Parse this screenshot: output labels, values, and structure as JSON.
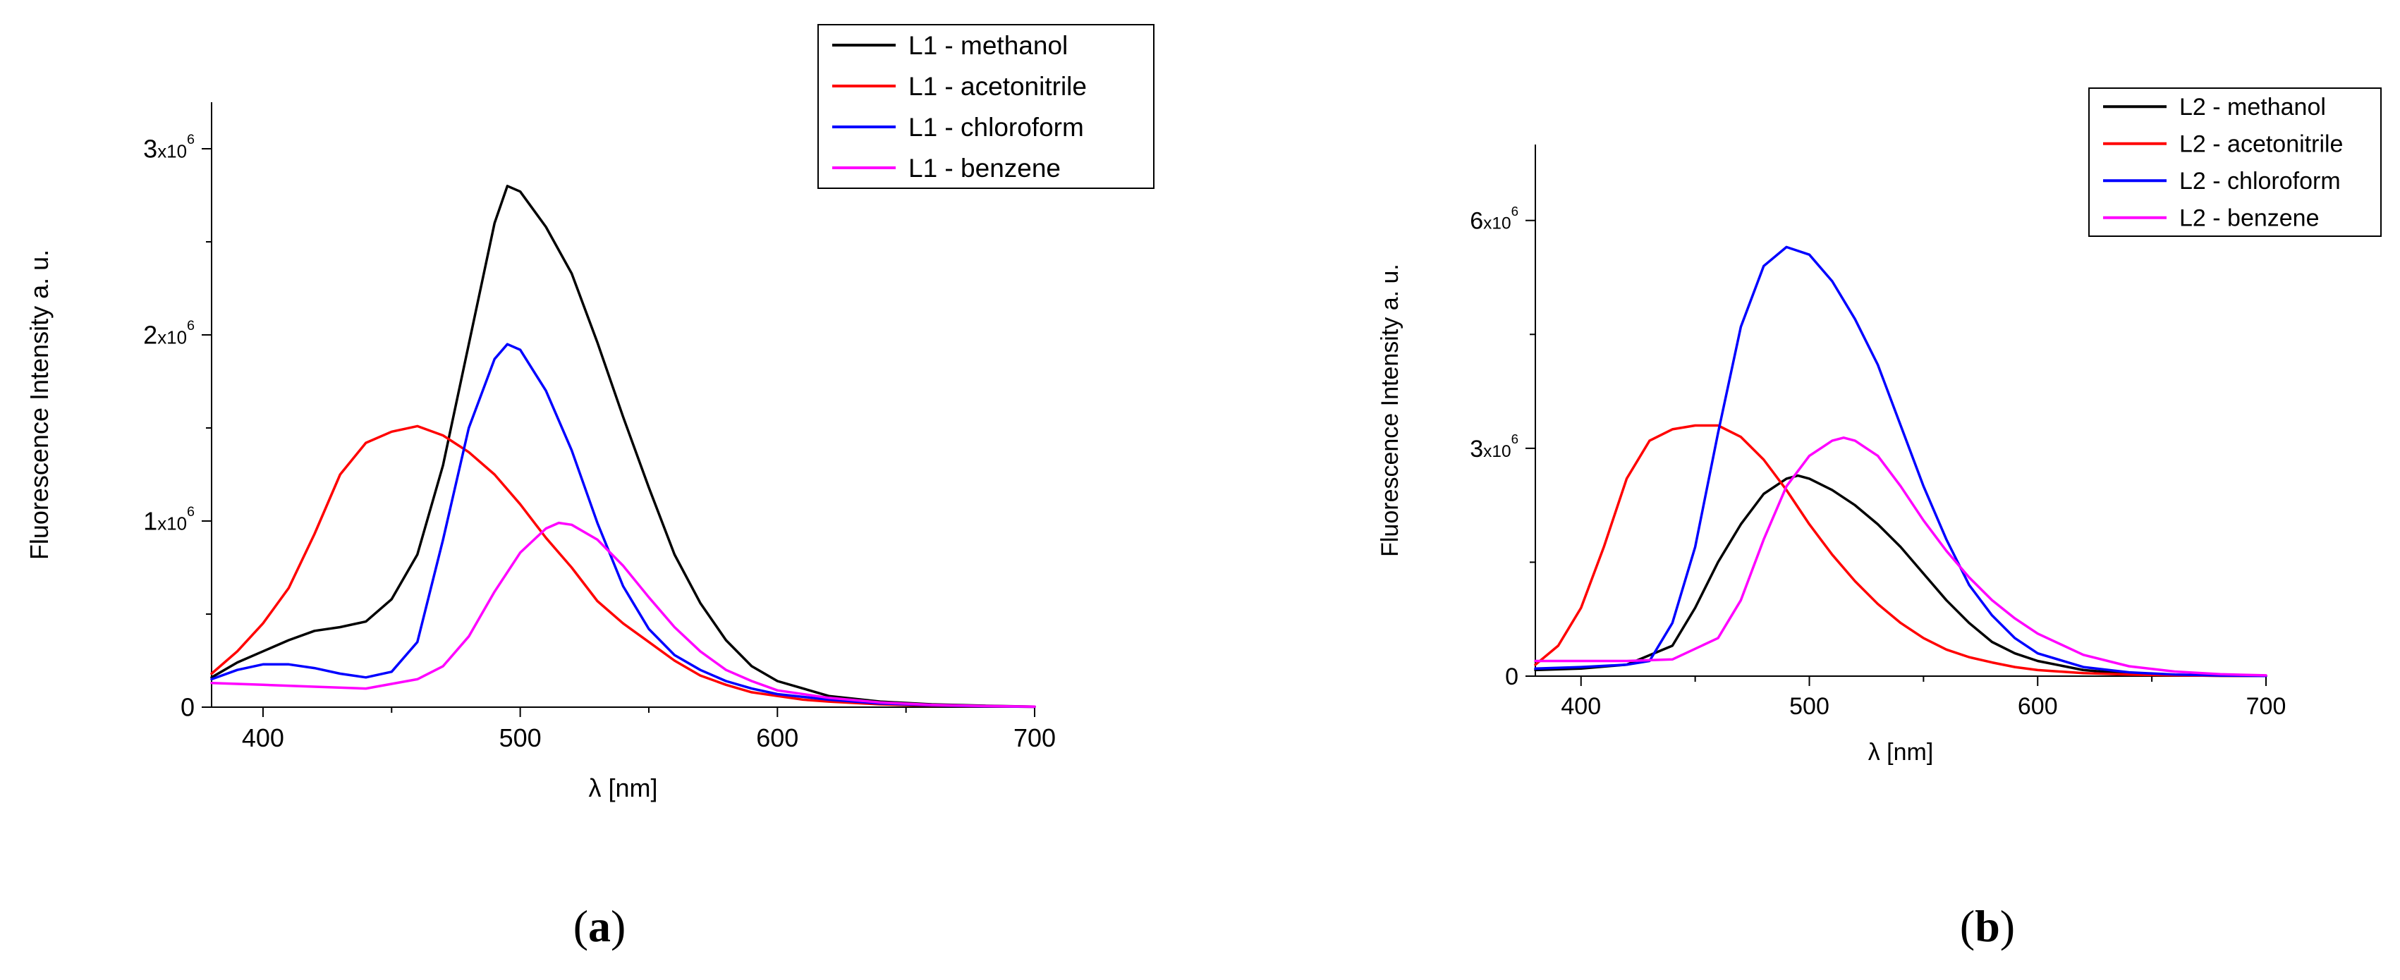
{
  "figure": {
    "panel_labels": [
      {
        "open": "(",
        "letter": "a",
        "close": ")"
      },
      {
        "open": "(",
        "letter": "b",
        "close": ")"
      }
    ]
  },
  "chart_data": [
    {
      "type": "line",
      "panel": "a",
      "xlabel": "λ [nm]",
      "ylabel": "Fluorescence Intensity a. u.",
      "xlim": [
        380,
        700
      ],
      "ylim": [
        0,
        3250000
      ],
      "xticks": [
        400,
        500,
        600,
        700
      ],
      "yticks": [
        {
          "value": 0,
          "mant": "0",
          "exp": ""
        },
        {
          "value": 1000000,
          "mant": "1",
          "exp": "6"
        },
        {
          "value": 2000000,
          "mant": "2",
          "exp": "6"
        },
        {
          "value": 3000000,
          "mant": "3",
          "exp": "6"
        }
      ],
      "legend_position": "top-right",
      "series": [
        {
          "name": "L1 - methanol",
          "color": "#000000",
          "x": [
            380,
            390,
            400,
            410,
            420,
            430,
            440,
            450,
            460,
            470,
            480,
            490,
            495,
            500,
            510,
            520,
            530,
            540,
            550,
            560,
            570,
            580,
            590,
            600,
            610,
            620,
            640,
            660,
            680,
            700
          ],
          "y": [
            160000,
            240000,
            300000,
            360000,
            410000,
            430000,
            460000,
            580000,
            820000,
            1300000,
            1950000,
            2600000,
            2800000,
            2770000,
            2580000,
            2330000,
            1960000,
            1560000,
            1180000,
            820000,
            560000,
            360000,
            220000,
            140000,
            100000,
            60000,
            30000,
            15000,
            8000,
            3000
          ]
        },
        {
          "name": "L1 - acetonitrile",
          "color": "#ff0000",
          "x": [
            380,
            390,
            400,
            410,
            420,
            430,
            440,
            450,
            460,
            470,
            480,
            490,
            500,
            510,
            520,
            530,
            540,
            550,
            560,
            570,
            580,
            590,
            600,
            610,
            620,
            640,
            660,
            680,
            700
          ],
          "y": [
            180000,
            300000,
            450000,
            640000,
            930000,
            1250000,
            1420000,
            1480000,
            1510000,
            1460000,
            1370000,
            1250000,
            1090000,
            910000,
            750000,
            570000,
            450000,
            350000,
            250000,
            170000,
            120000,
            80000,
            60000,
            40000,
            30000,
            15000,
            8000,
            4000,
            2000
          ]
        },
        {
          "name": "L1 - chloroform",
          "color": "#0000ff",
          "x": [
            380,
            390,
            400,
            410,
            420,
            430,
            440,
            450,
            460,
            470,
            480,
            490,
            495,
            500,
            510,
            520,
            530,
            540,
            550,
            560,
            570,
            580,
            590,
            600,
            620,
            640,
            660,
            680,
            700
          ],
          "y": [
            150000,
            200000,
            230000,
            230000,
            210000,
            180000,
            160000,
            190000,
            350000,
            900000,
            1500000,
            1870000,
            1950000,
            1920000,
            1700000,
            1380000,
            990000,
            650000,
            420000,
            280000,
            200000,
            140000,
            100000,
            70000,
            40000,
            20000,
            10000,
            5000,
            2000
          ]
        },
        {
          "name": "L1 - benzene",
          "color": "#ff00ff",
          "x": [
            380,
            400,
            420,
            440,
            460,
            470,
            480,
            490,
            500,
            510,
            515,
            520,
            530,
            540,
            550,
            560,
            570,
            580,
            590,
            600,
            620,
            640,
            660,
            680,
            700
          ],
          "y": [
            130000,
            120000,
            110000,
            100000,
            150000,
            220000,
            380000,
            620000,
            830000,
            960000,
            990000,
            980000,
            900000,
            760000,
            590000,
            430000,
            300000,
            200000,
            140000,
            90000,
            50000,
            25000,
            12000,
            6000,
            3000
          ]
        }
      ]
    },
    {
      "type": "line",
      "panel": "b",
      "xlabel": "λ [nm]",
      "ylabel": "Fluorescence Intensity a. u.",
      "xlim": [
        380,
        700
      ],
      "ylim": [
        0,
        7000000
      ],
      "xticks": [
        400,
        500,
        600,
        700
      ],
      "yticks": [
        {
          "value": 0,
          "mant": "0",
          "exp": ""
        },
        {
          "value": 3000000,
          "mant": "3",
          "exp": "6"
        },
        {
          "value": 6000000,
          "mant": "6",
          "exp": "6"
        }
      ],
      "legend_position": "top-right",
      "series": [
        {
          "name": "L2 - methanol",
          "color": "#000000",
          "x": [
            380,
            400,
            420,
            440,
            450,
            460,
            470,
            480,
            490,
            495,
            500,
            510,
            520,
            530,
            540,
            550,
            560,
            570,
            580,
            590,
            600,
            620,
            640,
            660,
            680,
            700
          ],
          "y": [
            80000,
            100000,
            150000,
            400000,
            900000,
            1500000,
            2000000,
            2400000,
            2600000,
            2640000,
            2600000,
            2450000,
            2250000,
            2000000,
            1700000,
            1350000,
            1000000,
            700000,
            450000,
            300000,
            200000,
            80000,
            30000,
            10000,
            5000,
            2000
          ]
        },
        {
          "name": "L2 - acetonitrile",
          "color": "#ff0000",
          "x": [
            380,
            390,
            400,
            410,
            420,
            430,
            440,
            450,
            460,
            470,
            480,
            490,
            500,
            510,
            520,
            530,
            540,
            550,
            560,
            570,
            580,
            590,
            600,
            620,
            640,
            660,
            680,
            700
          ],
          "y": [
            150000,
            400000,
            900000,
            1700000,
            2600000,
            3100000,
            3250000,
            3300000,
            3300000,
            3150000,
            2850000,
            2450000,
            2000000,
            1600000,
            1250000,
            950000,
            700000,
            500000,
            350000,
            250000,
            180000,
            120000,
            80000,
            40000,
            20000,
            10000,
            5000,
            2000
          ]
        },
        {
          "name": "L2 - chloroform",
          "color": "#0000ff",
          "x": [
            380,
            400,
            420,
            430,
            440,
            450,
            460,
            470,
            480,
            490,
            500,
            510,
            520,
            530,
            540,
            550,
            560,
            570,
            580,
            590,
            600,
            620,
            640,
            660,
            680,
            700
          ],
          "y": [
            100000,
            120000,
            150000,
            200000,
            700000,
            1700000,
            3200000,
            4600000,
            5400000,
            5650000,
            5550000,
            5200000,
            4700000,
            4100000,
            3300000,
            2500000,
            1800000,
            1200000,
            800000,
            500000,
            300000,
            120000,
            50000,
            20000,
            8000,
            3000
          ]
        },
        {
          "name": "L2 - benzene",
          "color": "#ff00ff",
          "x": [
            380,
            400,
            420,
            440,
            460,
            470,
            480,
            490,
            500,
            510,
            515,
            520,
            530,
            540,
            550,
            560,
            570,
            580,
            590,
            600,
            620,
            640,
            660,
            680,
            700
          ],
          "y": [
            200000,
            200000,
            200000,
            220000,
            500000,
            1000000,
            1800000,
            2500000,
            2900000,
            3100000,
            3140000,
            3100000,
            2900000,
            2500000,
            2050000,
            1650000,
            1300000,
            1000000,
            760000,
            560000,
            280000,
            130000,
            60000,
            25000,
            10000
          ]
        }
      ]
    }
  ]
}
